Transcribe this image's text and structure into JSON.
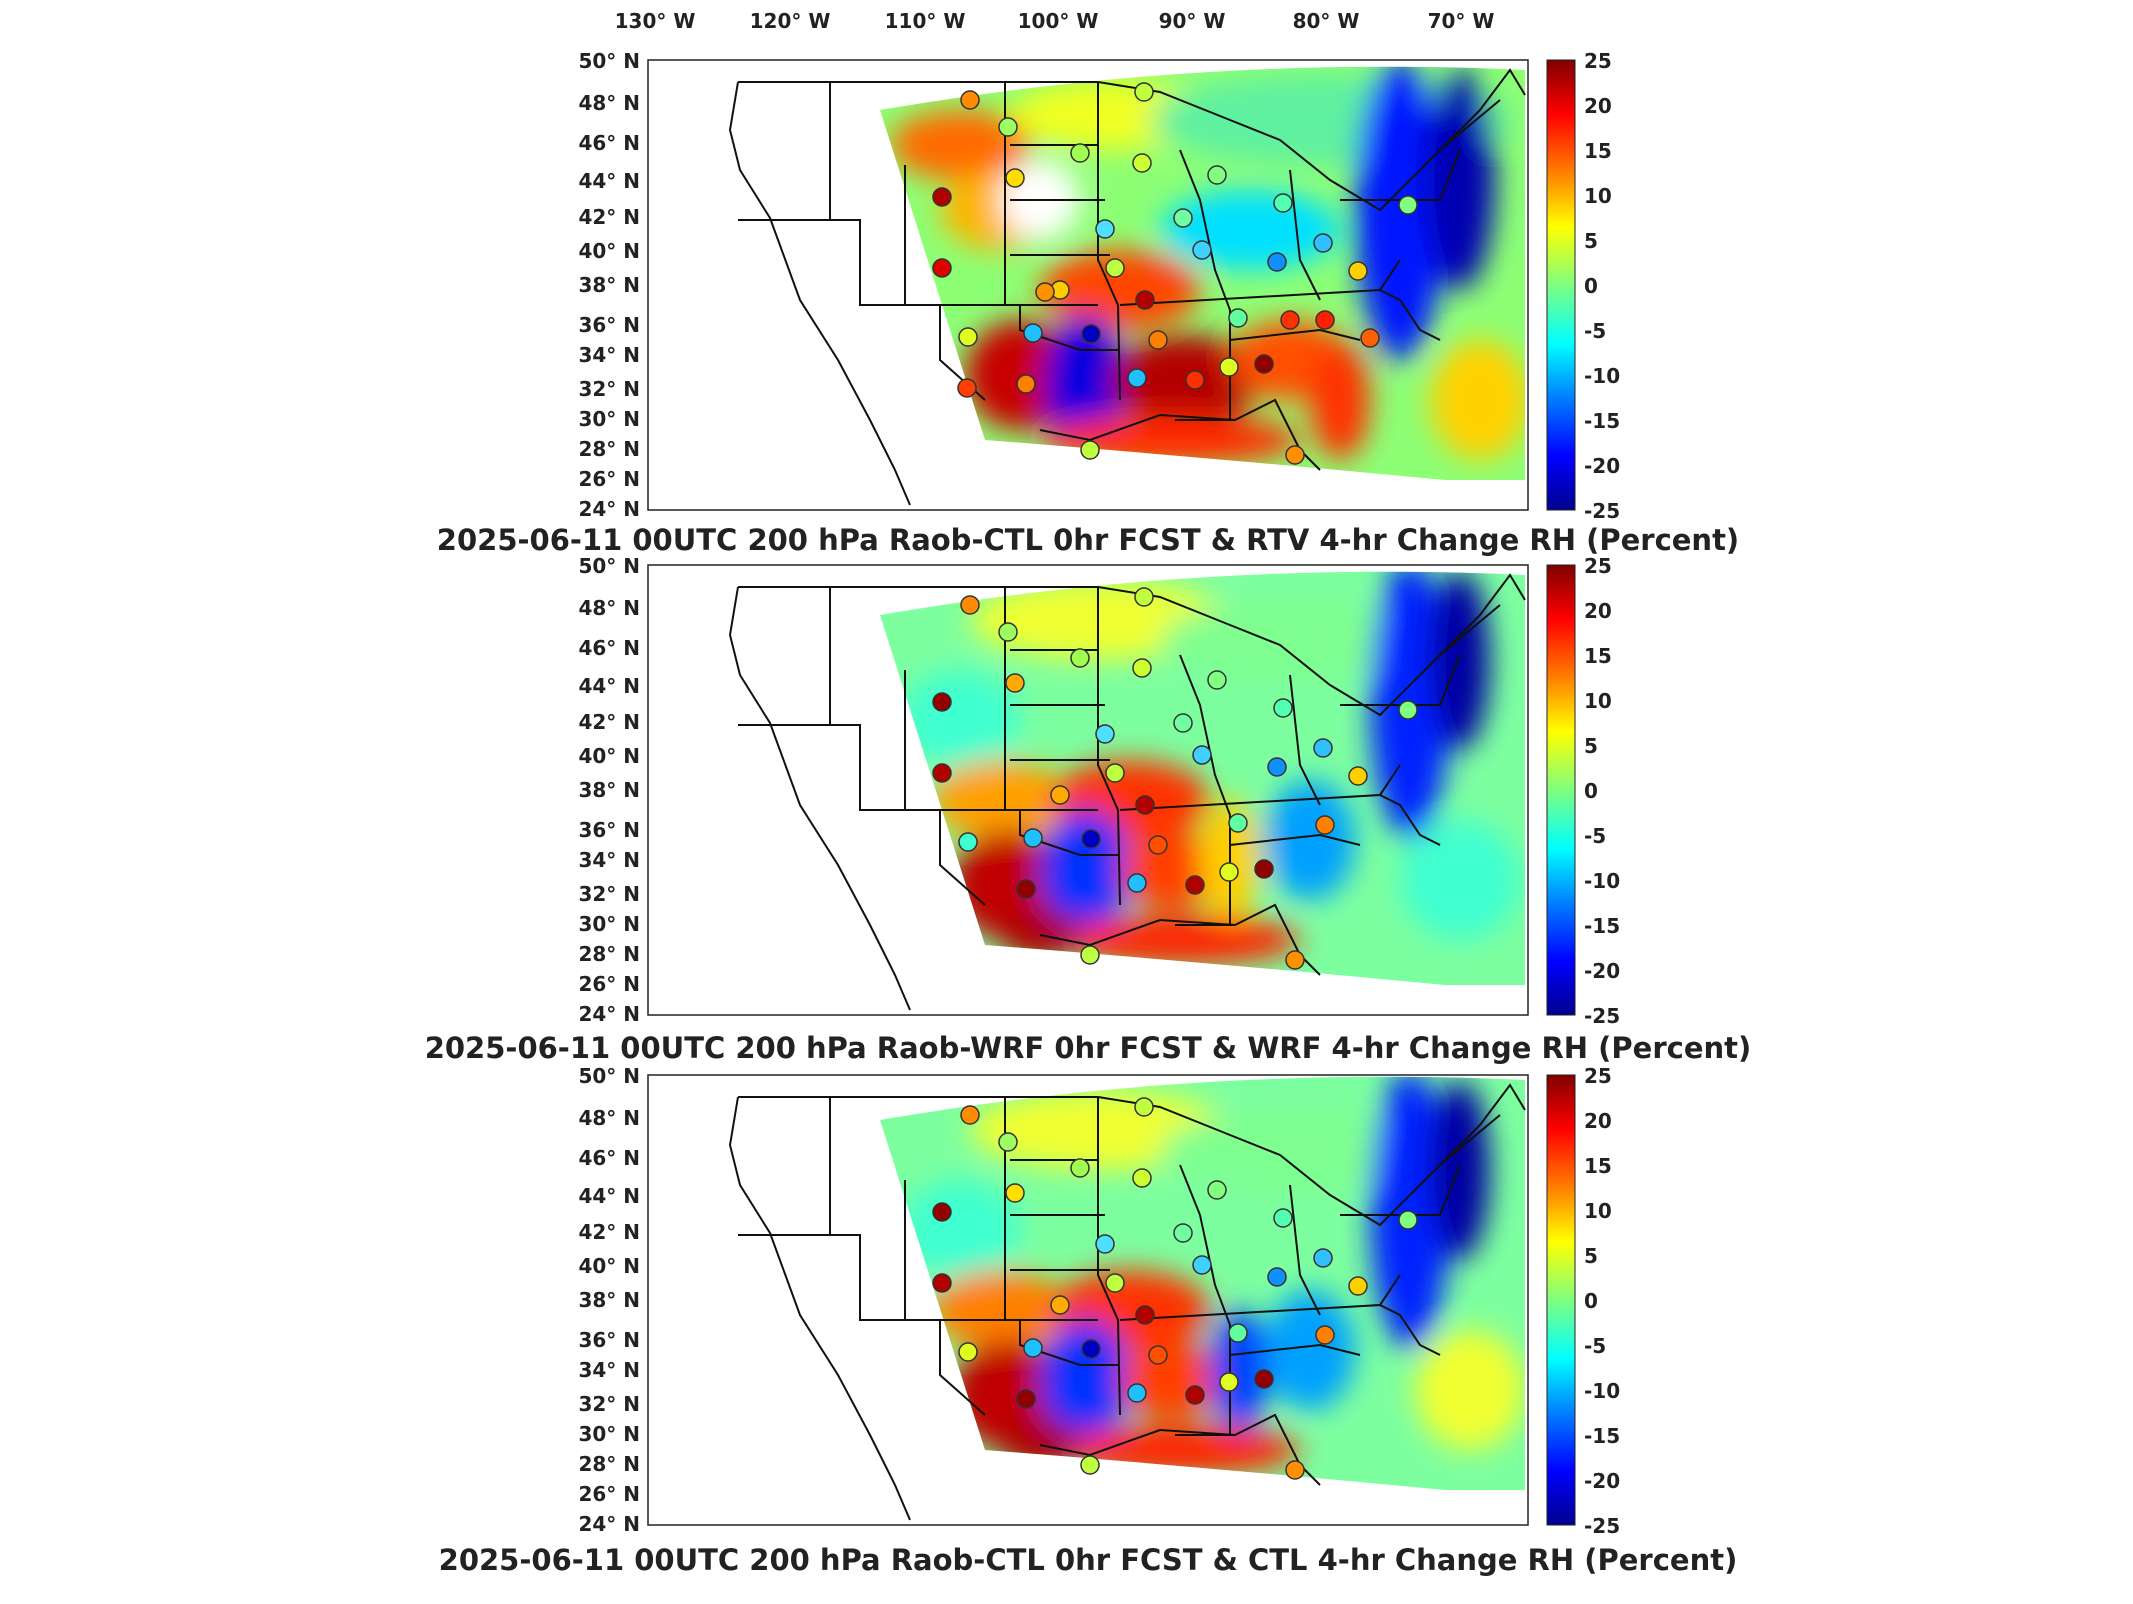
{
  "figure": {
    "lon_ticks": [
      "130° W",
      "120° W",
      "110° W",
      "100° W",
      "90° W",
      "80° W",
      "70° W"
    ],
    "lat_ticks": [
      "50° N",
      "48° N",
      "46° N",
      "44° N",
      "42° N",
      "40° N",
      "38° N",
      "36° N",
      "34° N",
      "32° N",
      "30° N",
      "28° N",
      "26° N",
      "24° N"
    ],
    "colorbar": {
      "ticks": [
        "25",
        "20",
        "15",
        "10",
        "5",
        "0",
        "-5",
        "-10",
        "-15",
        "-20",
        "-25"
      ],
      "min": -25,
      "max": 25,
      "colormap": "jet",
      "stops": [
        "#00008f",
        "#0000ff",
        "#007fff",
        "#00ffff",
        "#7fff7f",
        "#ffff00",
        "#ff7f00",
        "#ff0000",
        "#800000"
      ]
    },
    "panels": [
      {
        "title": "2025-06-11 00UTC 200 hPa Raob-CTL 0hr FCST & RTV 4-hr Change RH (Percent)"
      },
      {
        "title": "2025-06-11 00UTC 200 hPa Raob-WRF 0hr FCST & WRF 4-hr Change RH (Percent)"
      },
      {
        "title": "2025-06-11 00UTC 200 hPa Raob-CTL 0hr FCST & CTL 4-hr Change RH (Percent)"
      }
    ]
  }
}
